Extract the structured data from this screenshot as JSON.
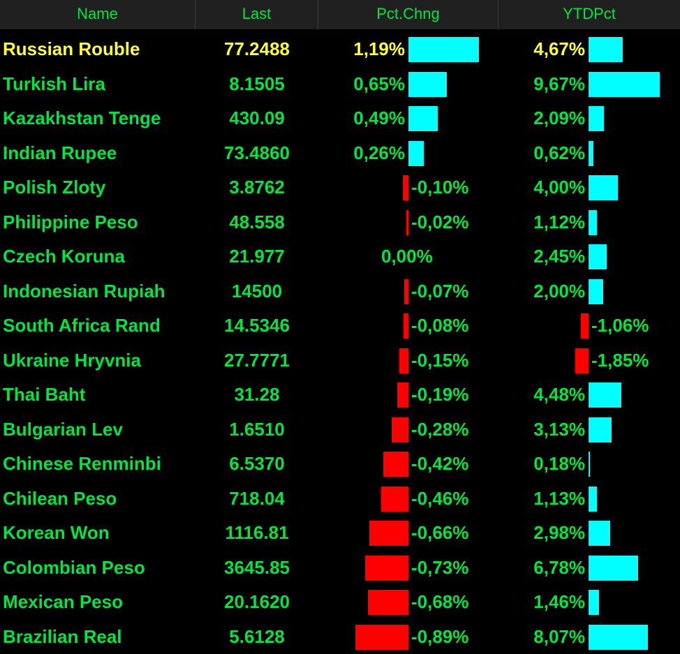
{
  "columns": [
    "Name",
    "Last",
    "Pct.Chng",
    "YTDPct"
  ],
  "colors": {
    "background": "#000000",
    "header_bg": "#202020",
    "text": "#00e640",
    "highlight_text": "#ffff33",
    "positive_bar": "#00ffff",
    "negative_bar": "#ff0000"
  },
  "rows": [
    {
      "name": "Russian Rouble",
      "last": "77.2488",
      "pct": "1,19%",
      "pct_value": 1.19,
      "ytd": "4,67%",
      "ytd_value": 4.67,
      "highlight": true
    },
    {
      "name": "Turkish Lira",
      "last": "8.1505",
      "pct": "0,65%",
      "pct_value": 0.65,
      "ytd": "9,67%",
      "ytd_value": 9.67
    },
    {
      "name": "Kazakhstan Tenge",
      "last": "430.09",
      "pct": "0,49%",
      "pct_value": 0.49,
      "ytd": "2,09%",
      "ytd_value": 2.09
    },
    {
      "name": "Indian Rupee",
      "last": "73.4860",
      "pct": "0,26%",
      "pct_value": 0.26,
      "ytd": "0,62%",
      "ytd_value": 0.62
    },
    {
      "name": "Polish Zloty",
      "last": "3.8762",
      "pct": "-0,10%",
      "pct_value": -0.1,
      "ytd": "4,00%",
      "ytd_value": 4.0
    },
    {
      "name": "Philippine Peso",
      "last": "48.558",
      "pct": "-0,02%",
      "pct_value": -0.02,
      "ytd": "1,12%",
      "ytd_value": 1.12
    },
    {
      "name": "Czech Koruna",
      "last": "21.977",
      "pct": "0,00%",
      "pct_value": 0.0,
      "ytd": "2,45%",
      "ytd_value": 2.45
    },
    {
      "name": "Indonesian Rupiah",
      "last": "14500",
      "pct": "-0,07%",
      "pct_value": -0.07,
      "ytd": "2,00%",
      "ytd_value": 2.0
    },
    {
      "name": "South Africa Rand",
      "last": "14.5346",
      "pct": "-0,08%",
      "pct_value": -0.08,
      "ytd": "-1,06%",
      "ytd_value": -1.06
    },
    {
      "name": "Ukraine Hryvnia",
      "last": "27.7771",
      "pct": "-0,15%",
      "pct_value": -0.15,
      "ytd": "-1,85%",
      "ytd_value": -1.85
    },
    {
      "name": "Thai Baht",
      "last": "31.28",
      "pct": "-0,19%",
      "pct_value": -0.19,
      "ytd": "4,48%",
      "ytd_value": 4.48
    },
    {
      "name": "Bulgarian Lev",
      "last": "1.6510",
      "pct": "-0,28%",
      "pct_value": -0.28,
      "ytd": "3,13%",
      "ytd_value": 3.13
    },
    {
      "name": "Chinese Renminbi",
      "last": "6.5370",
      "pct": "-0,42%",
      "pct_value": -0.42,
      "ytd": "0,18%",
      "ytd_value": 0.18
    },
    {
      "name": "Chilean Peso",
      "last": "718.04",
      "pct": "-0,46%",
      "pct_value": -0.46,
      "ytd": "1,13%",
      "ytd_value": 1.13
    },
    {
      "name": "Korean Won",
      "last": "1116.81",
      "pct": "-0,66%",
      "pct_value": -0.66,
      "ytd": "2,98%",
      "ytd_value": 2.98
    },
    {
      "name": "Colombian Peso",
      "last": "3645.85",
      "pct": "-0,73%",
      "pct_value": -0.73,
      "ytd": "6,78%",
      "ytd_value": 6.78
    },
    {
      "name": "Mexican Peso",
      "last": "20.1620",
      "pct": "-0,68%",
      "pct_value": -0.68,
      "ytd": "1,46%",
      "ytd_value": 1.46
    },
    {
      "name": "Brazilian Real",
      "last": "5.6128",
      "pct": "-0,89%",
      "pct_value": -0.89,
      "ytd": "8,07%",
      "ytd_value": 8.07
    }
  ]
}
